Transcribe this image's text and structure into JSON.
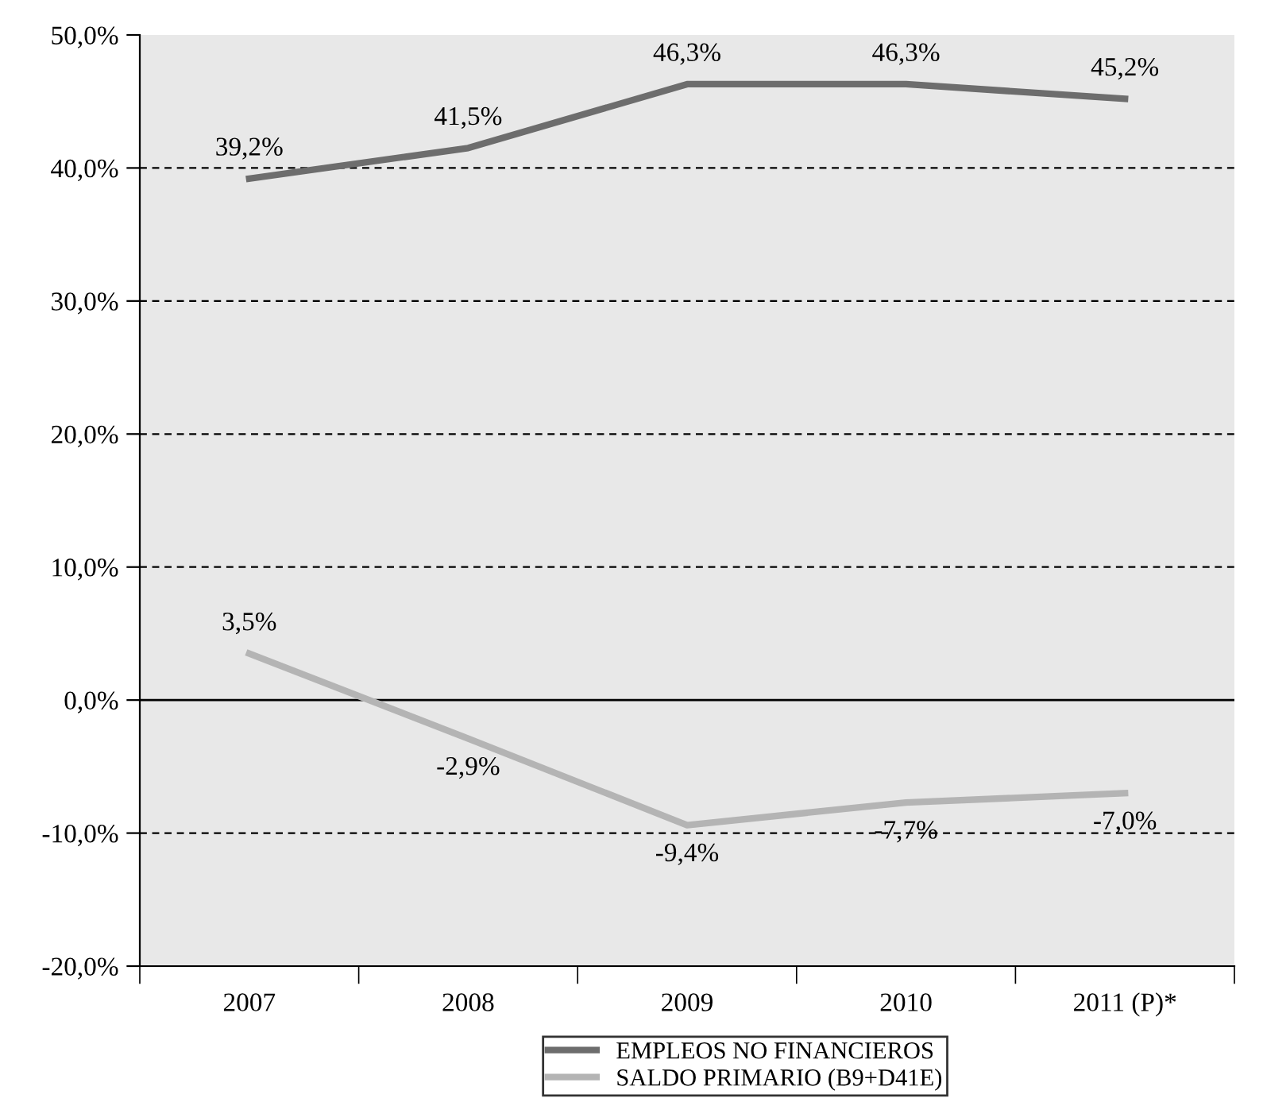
{
  "chart_data": {
    "type": "line",
    "categories": [
      "2007",
      "2008",
      "2009",
      "2010",
      "2011 (P)*"
    ],
    "series": [
      {
        "name": "EMPLEOS NO FINANCIEROS",
        "color": "#6d6d6d",
        "values": [
          39.2,
          41.5,
          46.3,
          46.3,
          45.2
        ],
        "value_labels": [
          "39,2%",
          "41,5%",
          "46,3%",
          "46,3%",
          "45,2%"
        ]
      },
      {
        "name": "SALDO PRIMARIO (B9+D41E)",
        "color": "#b4b4b4",
        "values": [
          3.5,
          -2.9,
          -9.4,
          -7.7,
          -7.0
        ],
        "value_labels": [
          "3,5%",
          "-2,9%",
          "-9,4%",
          "-7,7%",
          "-7,0%"
        ]
      }
    ],
    "ylim": [
      -20,
      50
    ],
    "yticks": [
      {
        "value": -20,
        "label": "-20,0%"
      },
      {
        "value": -10,
        "label": "-10,0%"
      },
      {
        "value": 0,
        "label": "0,0%"
      },
      {
        "value": 10,
        "label": "10,0%"
      },
      {
        "value": 20,
        "label": "20,0%"
      },
      {
        "value": 30,
        "label": "30,0%"
      },
      {
        "value": 40,
        "label": "40,0%"
      },
      {
        "value": 50,
        "label": "50,0%"
      }
    ],
    "grid": "y",
    "legend": "bottom",
    "marker": "none",
    "line_style": "solid"
  }
}
